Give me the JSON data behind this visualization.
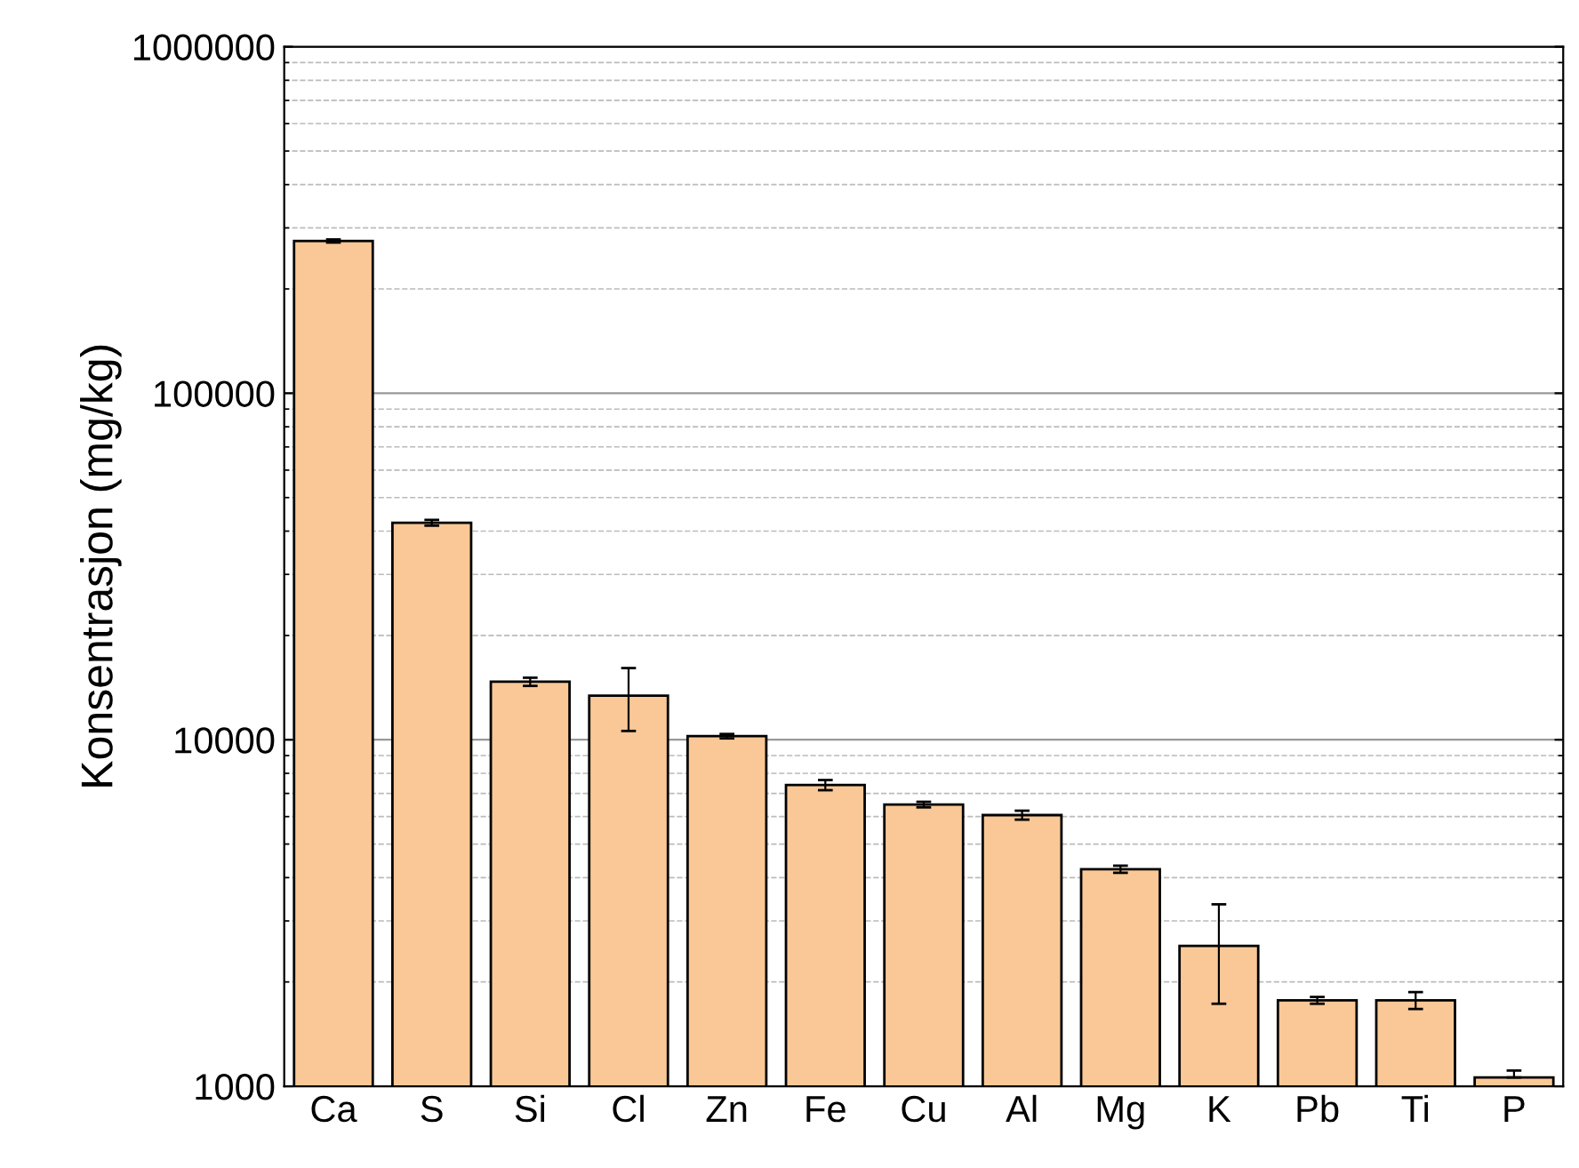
{
  "chart_data": {
    "type": "bar",
    "ylabel": "Konsentrasjon (mg/kg)",
    "categories": [
      "Ca",
      "S",
      "Si",
      "Cl",
      "Zn",
      "Fe",
      "Cu",
      "Al",
      "Mg",
      "K",
      "Pb",
      "Ti",
      "P"
    ],
    "values": [
      275000,
      42300,
      14700,
      13400,
      10240,
      7400,
      6500,
      6060,
      4230,
      2540,
      1770,
      1770,
      1060
    ],
    "errors": [
      3000,
      800,
      400,
      [
        10600,
        16100
      ],
      150,
      250,
      120,
      180,
      100,
      [
        1730,
        3350
      ],
      40,
      100,
      [
        1060,
        1110
      ]
    ],
    "color": "#f9c896",
    "log": true,
    "ylim": [
      1000,
      1000000
    ],
    "yticks": [
      1000,
      10000,
      100000,
      1000000
    ],
    "grid": "y"
  }
}
